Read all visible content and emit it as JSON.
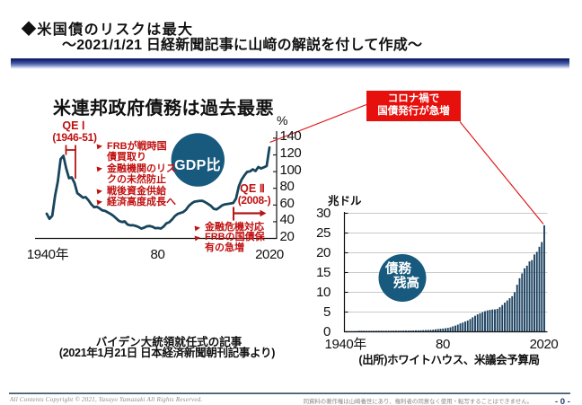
{
  "header": {
    "title_line1": "◆米国債のリスクは最大",
    "title_line2": "〜2021/1/21 日経新聞記事に山﨑の解説を付して作成〜"
  },
  "left_chart": {
    "title": "米連邦政府債務は過去最悪",
    "unit": "%",
    "circle_label": "GDP比",
    "qe1_label": "QE Ⅰ",
    "qe1_sublabel": "(1946-51)",
    "qe1_notes": [
      [
        "FRBが戦時国",
        "債買取り"
      ],
      [
        "金融機関のリス",
        "クの未然防止"
      ],
      [
        "戦後資金供給"
      ],
      [
        "経済高度成長へ"
      ]
    ],
    "qe2_label": "QE Ⅱ",
    "qe2_sublabel": "(2008-)",
    "qe2_notes": [
      [
        "金融危機対応"
      ],
      [
        "FRBの国債保",
        "有の急増"
      ]
    ]
  },
  "callout": {
    "line1": "コロナ禍で",
    "line2": "国債発行が急増"
  },
  "right_chart": {
    "unit": "兆ドル",
    "circle_label_line1": "債務",
    "circle_label_line2": "残高",
    "source": "(出所)ホワイトハウス、米議会予算局"
  },
  "caption": {
    "line1": "バイデン大統領就任式の記事",
    "line2": "(2021年1月21日 日本経済新聞朝刊記事より)"
  },
  "footer": {
    "left": "All Contents Copyright © 2021, Yasuyo Yamazaki All Rights Reserved.",
    "right": "同資料の著作権は山崎養世にあり、権利者の同意なく使用・転写することはできません。",
    "page": "- 0 -"
  },
  "colors": {
    "line_navy": "#17455c",
    "bar_navy": "#1c4260",
    "circle_fill": "#175a7d",
    "red_text": "#c01010",
    "red_box": "#e6100d",
    "red_connector": "#e01010",
    "qe_marker_red": "#b51616",
    "grid_gray": "#c9c9c9",
    "axis_black": "#111111"
  },
  "chart_data": [
    {
      "type": "line",
      "title": "米連邦政府債務は過去最悪",
      "ylabel": "%",
      "series_name": "GDP比",
      "x_start": 1940,
      "x_end": 2020,
      "values": [
        49.6,
        43.4,
        47.2,
        70.9,
        88.3,
        114.9,
        118.9,
        103.9,
        92.1,
        93.1,
        86.2,
        74.2,
        71.6,
        68.8,
        69.5,
        65.7,
        61.0,
        57.4,
        58.0,
        55.9,
        53.6,
        52.9,
        51.1,
        49.3,
        46.9,
        43.9,
        40.9,
        39.7,
        40.4,
        36.8,
        35.7,
        35.8,
        35.0,
        33.7,
        31.7,
        32.9,
        34.5,
        34.8,
        34.0,
        32.3,
        32.5,
        31.8,
        34.3,
        38.1,
        39.4,
        42.6,
        46.7,
        49.2,
        50.4,
        51.5,
        54.2,
        58.8,
        61.7,
        64.0,
        64.5,
        65.1,
        65.0,
        63.2,
        61.2,
        58.9,
        55.5,
        54.7,
        57.0,
        59.6,
        60.8,
        61.3,
        61.8,
        62.5,
        67.7,
        82.4,
        90.4,
        95.5,
        99.7,
        100.2,
        102.7,
        100.8,
        105.5,
        103.8,
        105.2,
        106.7,
        128.8
      ],
      "ylim": [
        20,
        150
      ],
      "yticks": [
        140,
        120,
        100,
        80,
        60,
        40,
        20
      ],
      "xtick_labels": [
        "1940年",
        "80",
        "2020"
      ],
      "xtick_years": [
        1940,
        1980,
        2020
      ],
      "grid": false,
      "annotations": [
        "QEⅠ(1946-51)",
        "QEⅡ(2008-)",
        "コロナ禍で国債発行が急増"
      ]
    },
    {
      "type": "bar",
      "title": "",
      "ylabel": "兆ドル",
      "series_name": "債務残高",
      "x_start": 1940,
      "x_end": 2020,
      "values": [
        0.05,
        0.06,
        0.08,
        0.14,
        0.2,
        0.26,
        0.27,
        0.26,
        0.25,
        0.25,
        0.26,
        0.26,
        0.26,
        0.27,
        0.27,
        0.27,
        0.27,
        0.27,
        0.28,
        0.29,
        0.29,
        0.29,
        0.3,
        0.31,
        0.32,
        0.32,
        0.33,
        0.34,
        0.37,
        0.37,
        0.38,
        0.41,
        0.44,
        0.47,
        0.48,
        0.54,
        0.63,
        0.71,
        0.78,
        0.83,
        0.91,
        1.0,
        1.14,
        1.38,
        1.57,
        1.82,
        2.13,
        2.35,
        2.6,
        2.86,
        3.23,
        3.67,
        4.07,
        4.41,
        4.69,
        4.97,
        5.22,
        5.41,
        5.53,
        5.66,
        5.67,
        5.81,
        6.23,
        6.78,
        7.38,
        7.93,
        8.51,
        9.01,
        10.03,
        11.91,
        13.56,
        14.79,
        16.07,
        16.74,
        17.82,
        18.15,
        19.57,
        20.25,
        21.52,
        22.72,
        26.95
      ],
      "ylim": [
        0,
        30
      ],
      "yticks": [
        30,
        25,
        20,
        15,
        10,
        5,
        0
      ],
      "xtick_labels": [
        "1940年",
        "80",
        "2020"
      ],
      "xtick_years": [
        1940,
        1980,
        2020
      ],
      "grid": true,
      "source": "(出所)ホワイトハウス、米議会予算局"
    }
  ]
}
